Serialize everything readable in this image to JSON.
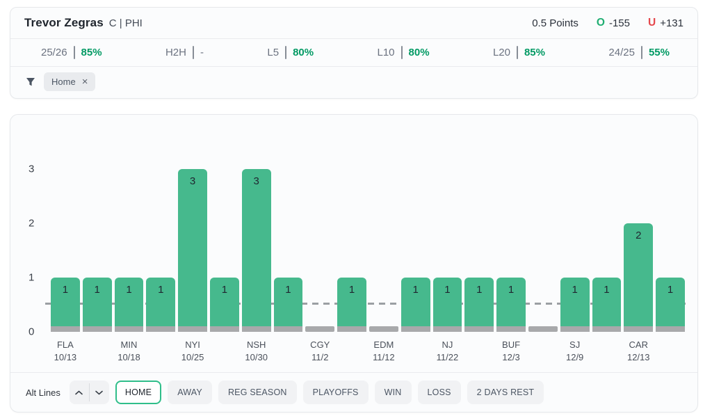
{
  "player": {
    "name": "Trevor Zegras",
    "position_team": "C | PHI"
  },
  "prop": {
    "line_label": "0.5 Points",
    "over_letter": "O",
    "over_odds": "-155",
    "under_letter": "U",
    "under_odds": "+131"
  },
  "splits": [
    {
      "label": "25/26",
      "value": "85%"
    },
    {
      "label": "H2H",
      "value": "-"
    },
    {
      "label": "L5",
      "value": "80%"
    },
    {
      "label": "L10",
      "value": "80%"
    },
    {
      "label": "L20",
      "value": "85%"
    },
    {
      "label": "24/25",
      "value": "55%"
    }
  ],
  "filter": {
    "chip_label": "Home",
    "chip_close": "×"
  },
  "chart_data": {
    "type": "bar",
    "title": "",
    "xlabel": "",
    "ylabel": "",
    "ylim": [
      0,
      3
    ],
    "yticks": [
      0,
      1,
      2,
      3
    ],
    "prop_line": 0.5,
    "grid": false,
    "values": [
      1,
      1,
      1,
      1,
      3,
      1,
      3,
      1,
      0,
      1,
      0,
      1,
      1,
      1,
      1,
      0,
      1,
      1,
      2,
      1
    ],
    "tick_labels": [
      {
        "index": 0,
        "team": "FLA",
        "date": "10/13"
      },
      {
        "index": 2,
        "team": "MIN",
        "date": "10/18"
      },
      {
        "index": 4,
        "team": "NYI",
        "date": "10/25"
      },
      {
        "index": 6,
        "team": "NSH",
        "date": "10/30"
      },
      {
        "index": 8,
        "team": "CGY",
        "date": "11/2"
      },
      {
        "index": 10,
        "team": "EDM",
        "date": "11/12"
      },
      {
        "index": 12,
        "team": "NJ",
        "date": "11/22"
      },
      {
        "index": 14,
        "team": "BUF",
        "date": "12/3"
      },
      {
        "index": 16,
        "team": "SJ",
        "date": "12/9"
      },
      {
        "index": 18,
        "team": "CAR",
        "date": "12/13"
      }
    ]
  },
  "toolbar": {
    "alt_lines_label": "Alt Lines",
    "buttons": [
      {
        "label": "HOME",
        "active": true
      },
      {
        "label": "AWAY",
        "active": false
      },
      {
        "label": "REG SEASON",
        "active": false
      },
      {
        "label": "PLAYOFFS",
        "active": false
      },
      {
        "label": "WIN",
        "active": false
      },
      {
        "label": "LOSS",
        "active": false
      },
      {
        "label": "2 DAYS REST",
        "active": false
      }
    ]
  },
  "colors": {
    "bar_green": "#46b98d",
    "bar_base_gray": "#a8a9ab",
    "prop_line_gray": "#9b9fa3",
    "stat_green": "#029a64",
    "over_green": "#1fae72",
    "under_red": "#e5484d",
    "active_button_border": "#2fbe8a"
  }
}
